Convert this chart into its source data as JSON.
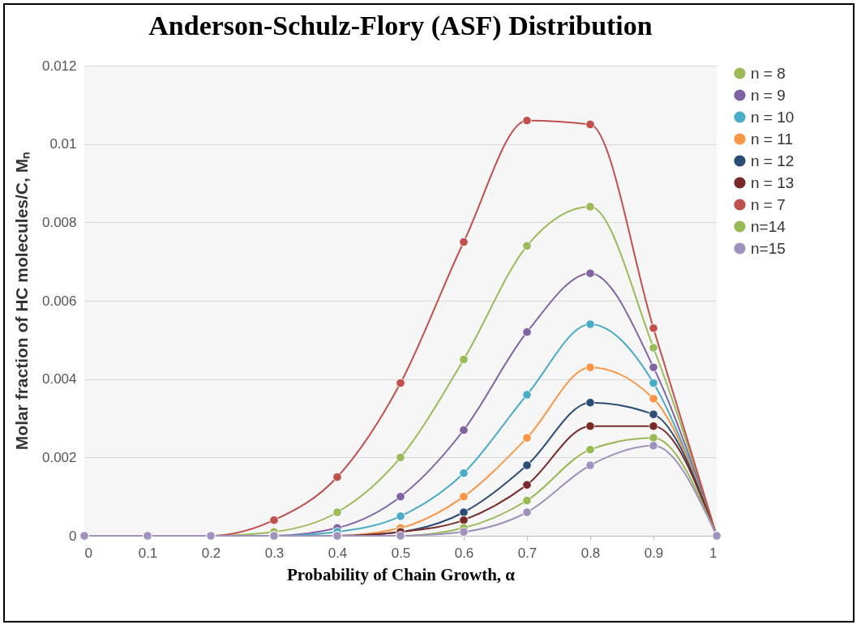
{
  "chart_data": {
    "type": "line",
    "title": "Anderson-Schulz-Flory (ASF) Distribution",
    "xlabel": "Probability of Chain Growth, α",
    "ylabel": "Molar  fraction of HC molecules/C, Mₙ",
    "x": [
      0,
      0.1,
      0.2,
      0.3,
      0.4,
      0.5,
      0.6,
      0.7,
      0.8,
      0.9,
      1
    ],
    "xlim": [
      0,
      1
    ],
    "xticks": [
      0,
      0.1,
      0.2,
      0.3,
      0.4,
      0.5,
      0.6,
      0.7,
      0.8,
      0.9,
      1
    ],
    "ylim": [
      0,
      0.012
    ],
    "yticks": [
      0,
      0.002,
      0.004,
      0.006,
      0.008,
      0.01,
      0.012
    ],
    "grid": "y",
    "legend": "right",
    "marker": "circle",
    "line_style": "solid",
    "series": [
      {
        "name": "n = 8",
        "color": "#9bbb59",
        "values": [
          0,
          0,
          0,
          0.0001,
          0.0006,
          0.002,
          0.0045,
          0.0074,
          0.0084,
          0.0048,
          0
        ]
      },
      {
        "name": "n = 9",
        "color": "#8064a2",
        "values": [
          0,
          0,
          0,
          0,
          0.0002,
          0.001,
          0.0027,
          0.0052,
          0.0067,
          0.0043,
          0
        ]
      },
      {
        "name": "n = 10",
        "color": "#4bacc6",
        "values": [
          null,
          null,
          0,
          0,
          0.0001,
          0.0005,
          0.0016,
          0.0036,
          0.0054,
          0.0039,
          0
        ]
      },
      {
        "name": "n = 11",
        "color": "#f79646",
        "values": [
          0,
          0,
          0,
          0,
          0,
          0.0002,
          0.001,
          0.0025,
          0.0043,
          0.0035,
          0
        ]
      },
      {
        "name": "n = 12",
        "color": "#2c4d75",
        "values": [
          0,
          0,
          0,
          0,
          0,
          0.0001,
          0.0006,
          0.0018,
          0.0034,
          0.0031,
          0
        ]
      },
      {
        "name": "n = 13",
        "color": "#772c2a",
        "values": [
          0,
          0,
          0,
          0,
          0,
          0.0001,
          0.0004,
          0.0013,
          0.0028,
          0.0028,
          0
        ]
      },
      {
        "name": "n = 7",
        "color": "#c0504d",
        "values": [
          0,
          0,
          0,
          0.0004,
          0.0015,
          0.0039,
          0.0075,
          0.0106,
          0.0105,
          0.0053,
          0
        ]
      },
      {
        "name": "n=14",
        "color": "#98b954",
        "values": [
          0,
          0,
          0,
          0,
          0,
          0,
          0.0002,
          0.0009,
          0.0022,
          0.0025,
          0
        ]
      },
      {
        "name": "n=15",
        "color": "#a092bd",
        "values": [
          0,
          0,
          0,
          0,
          0,
          0,
          0.0001,
          0.0006,
          0.0018,
          0.0023,
          0
        ]
      }
    ]
  }
}
